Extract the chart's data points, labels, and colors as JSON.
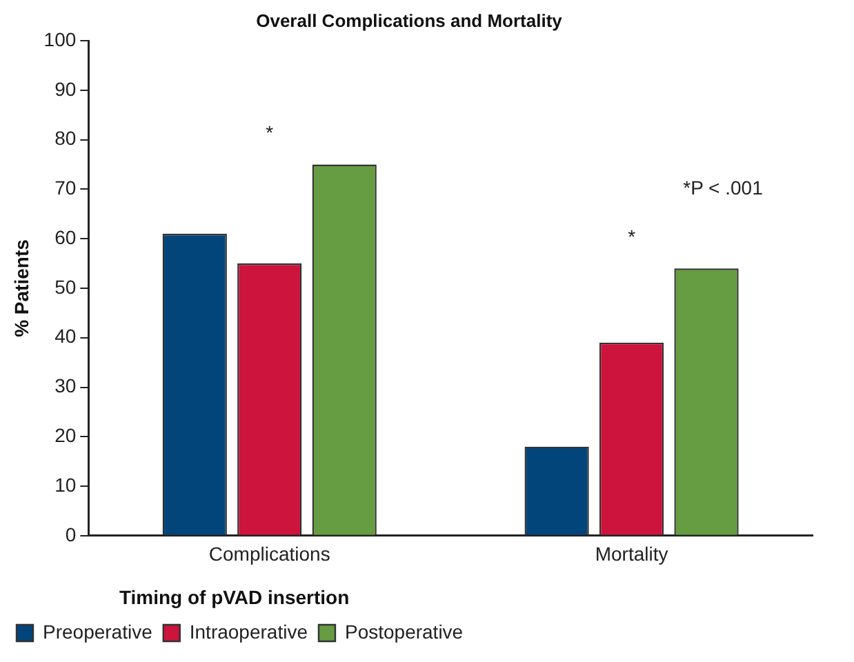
{
  "chart_data": {
    "type": "bar",
    "title": "Overall Complications and Mortality",
    "ylabel": "% Patients",
    "legend_title": "Timing of pVAD insertion",
    "categories": [
      "Complications",
      "Mortality"
    ],
    "series": [
      {
        "name": "Preoperative",
        "color": "#02457a",
        "values": [
          61,
          18
        ]
      },
      {
        "name": "Intraoperative",
        "color": "#cc143c",
        "values": [
          55,
          39
        ]
      },
      {
        "name": "Postoperative",
        "color": "#669c42",
        "values": [
          75,
          54
        ]
      }
    ],
    "ylim": [
      0,
      100
    ],
    "yticks": [
      0,
      10,
      20,
      30,
      40,
      50,
      60,
      70,
      80,
      90,
      100
    ],
    "grid": false,
    "legend": "bottom left",
    "annotations": [
      "*",
      "*",
      "*P < .001"
    ]
  }
}
